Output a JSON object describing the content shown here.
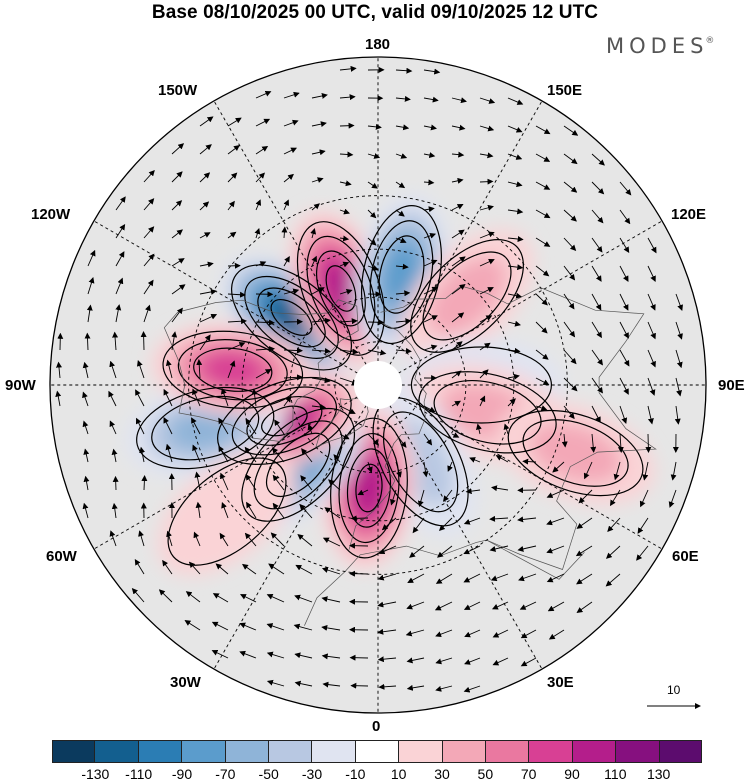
{
  "title": "Base 08/10/2025 00 UTC, valid 09/10/2025 12 UTC",
  "brand": "MODES",
  "brand_mark": "®",
  "longitude_labels": {
    "lon_180": "180",
    "lon_150e": "150E",
    "lon_120e": "120E",
    "lon_90e": "90E",
    "lon_60e": "60E",
    "lon_30e": "30E",
    "lon_0": "0",
    "lon_30w": "30W",
    "lon_60w": "60W",
    "lon_90w": "90W",
    "lon_120w": "120W",
    "lon_150w": "150W"
  },
  "reference_vector_label": "10",
  "colorbar": {
    "colors": [
      "#0b3a5e",
      "#135f8f",
      "#2b7db4",
      "#5b9ccc",
      "#8fb4d8",
      "#b8c8e2",
      "#e0e4f1",
      "#ffffff",
      "#fad3d6",
      "#f3a8b7",
      "#ea78a0",
      "#d84094",
      "#b41e8b",
      "#86107f",
      "#5c0c6e"
    ],
    "ticks": [
      "-130",
      "-110",
      "-90",
      "-70",
      "-50",
      "-30",
      "-10",
      "10",
      "30",
      "50",
      "70",
      "90",
      "110",
      "130"
    ]
  },
  "anomaly_centers": [
    {
      "name": "negative-center-1",
      "lon": -128,
      "lat": 53,
      "value": -130
    },
    {
      "name": "positive-center-1",
      "lon": -159,
      "lat": 55,
      "value": 110
    },
    {
      "name": "negative-center-2",
      "lon": 168,
      "lat": 52,
      "value": -90
    },
    {
      "name": "positive-center-2",
      "lon": 135,
      "lat": 48,
      "value": 50
    },
    {
      "name": "negative-center-3",
      "lon": 90,
      "lat": 55,
      "value": -30
    },
    {
      "name": "positive-center-3",
      "lon": 76,
      "lat": 52,
      "value": 50
    },
    {
      "name": "positive-center-4",
      "lon": 71,
      "lat": 25,
      "value": 50
    },
    {
      "name": "negative-center-4",
      "lon": 29,
      "lat": 60,
      "value": -50
    },
    {
      "name": "positive-center-5",
      "lon": -5,
      "lat": 55,
      "value": 110
    },
    {
      "name": "negative-center-5",
      "lon": -45,
      "lat": 52,
      "value": -90
    },
    {
      "name": "positive-center-6",
      "lon": -69,
      "lat": 56,
      "value": 110
    },
    {
      "name": "negative-center-6",
      "lon": -76,
      "lat": 33,
      "value": -70
    },
    {
      "name": "positive-center-7",
      "lon": -96,
      "lat": 42,
      "value": 90
    },
    {
      "name": "positive-center-8",
      "lon": -50,
      "lat": 28,
      "value": 30
    }
  ]
}
